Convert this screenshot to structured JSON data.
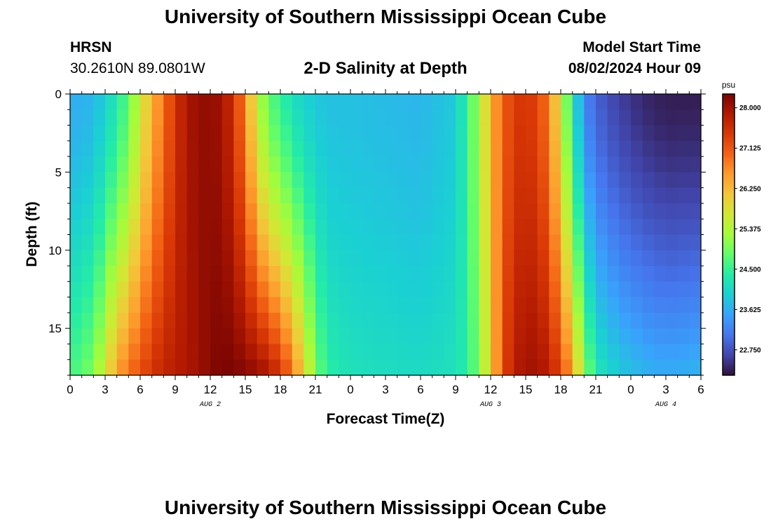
{
  "header": {
    "title": "University of Southern Mississippi Ocean Cube",
    "station": "HRSN",
    "coordinates": "30.2610N  89.0801W",
    "chart_title": "2-D Salinity at Depth",
    "start_label": "Model Start Time",
    "start_value": "08/02/2024 Hour 09"
  },
  "footer": {
    "title": "University of Southern Mississippi Ocean Cube"
  },
  "chart_data": {
    "type": "heatmap",
    "title": "2-D Salinity at Depth",
    "xlabel": "Forecast Time(Z)",
    "ylabel": "Depth (ft)",
    "x_range_hours": [
      0,
      54
    ],
    "y_range_ft": [
      0,
      18
    ],
    "y_inverted": true,
    "x_tick_labels": [
      "0",
      "3",
      "6",
      "9",
      "12",
      "15",
      "18",
      "21",
      "0",
      "3",
      "6",
      "9",
      "12",
      "15",
      "18",
      "21",
      "0",
      "3",
      "6"
    ],
    "y_ticks": [
      0,
      5,
      10,
      15
    ],
    "date_labels": [
      {
        "text": "AUG 2",
        "hour": 12
      },
      {
        "text": "AUG 3",
        "hour": 36
      },
      {
        "text": "AUG 4",
        "hour": 51
      }
    ],
    "colorbar": {
      "unit": "psu",
      "min": 22.2,
      "max": 28.3,
      "ticks": [
        "28.000",
        "27.125",
        "26.250",
        "25.375",
        "24.500",
        "23.625",
        "22.750"
      ]
    },
    "colorscale": [
      "#30123b",
      "#4145ab",
      "#4675ed",
      "#39a2fc",
      "#1bcfd4",
      "#24eca6",
      "#61fc6c",
      "#a4fc3b",
      "#d1e834",
      "#f3c63a",
      "#fe9b2d",
      "#f36315",
      "#d93806",
      "#b11901",
      "#7a0403"
    ],
    "grid_hours_step": 1,
    "grid_depth_rows": 18,
    "salinity_profiles": [
      {
        "hour": 0,
        "surface": 23.6,
        "bottom": 24.6
      },
      {
        "hour": 2,
        "surface": 23.7,
        "bottom": 25.0
      },
      {
        "hour": 4,
        "surface": 24.3,
        "bottom": 26.5
      },
      {
        "hour": 5,
        "surface": 24.8,
        "bottom": 26.9
      },
      {
        "hour": 6,
        "surface": 25.6,
        "bottom": 27.2
      },
      {
        "hour": 7,
        "surface": 26.3,
        "bottom": 27.5
      },
      {
        "hour": 8,
        "surface": 26.9,
        "bottom": 27.7
      },
      {
        "hour": 9,
        "surface": 27.5,
        "bottom": 27.8
      },
      {
        "hour": 10,
        "surface": 27.9,
        "bottom": 27.9
      },
      {
        "hour": 11,
        "surface": 28.1,
        "bottom": 28.0
      },
      {
        "hour": 12,
        "surface": 28.1,
        "bottom": 28.2
      },
      {
        "hour": 13,
        "surface": 28.0,
        "bottom": 28.3
      },
      {
        "hour": 14,
        "surface": 27.5,
        "bottom": 28.3
      },
      {
        "hour": 15,
        "surface": 26.7,
        "bottom": 28.2
      },
      {
        "hour": 16,
        "surface": 25.5,
        "bottom": 28.1
      },
      {
        "hour": 17,
        "surface": 24.8,
        "bottom": 27.9
      },
      {
        "hour": 18,
        "surface": 24.5,
        "bottom": 27.5
      },
      {
        "hour": 19,
        "surface": 24.2,
        "bottom": 26.9
      },
      {
        "hour": 20,
        "surface": 24.0,
        "bottom": 26.0
      },
      {
        "hour": 21,
        "surface": 23.9,
        "bottom": 25.0
      },
      {
        "hour": 22,
        "surface": 23.8,
        "bottom": 24.4
      },
      {
        "hour": 24,
        "surface": 23.8,
        "bottom": 24.2
      },
      {
        "hour": 30,
        "surface": 23.7,
        "bottom": 24.1
      },
      {
        "hour": 33,
        "surface": 23.9,
        "bottom": 24.2
      },
      {
        "hour": 34,
        "surface": 24.5,
        "bottom": 24.4
      },
      {
        "hour": 35,
        "surface": 25.3,
        "bottom": 25.0
      },
      {
        "hour": 36,
        "surface": 26.3,
        "bottom": 26.0
      },
      {
        "hour": 37,
        "surface": 27.0,
        "bottom": 27.2
      },
      {
        "hour": 38,
        "surface": 27.4,
        "bottom": 27.8
      },
      {
        "hour": 39,
        "surface": 27.5,
        "bottom": 28.0
      },
      {
        "hour": 40,
        "surface": 27.3,
        "bottom": 28.0
      },
      {
        "hour": 41,
        "surface": 26.8,
        "bottom": 27.8
      },
      {
        "hour": 42,
        "surface": 25.6,
        "bottom": 27.3
      },
      {
        "hour": 43,
        "surface": 24.3,
        "bottom": 26.5
      },
      {
        "hour": 44,
        "surface": 23.3,
        "bottom": 25.2
      },
      {
        "hour": 45,
        "surface": 22.9,
        "bottom": 24.3
      },
      {
        "hour": 47,
        "surface": 22.6,
        "bottom": 23.9
      },
      {
        "hour": 49,
        "surface": 22.4,
        "bottom": 23.7
      },
      {
        "hour": 51,
        "surface": 22.3,
        "bottom": 23.6
      },
      {
        "hour": 54,
        "surface": 22.3,
        "bottom": 23.7
      }
    ]
  }
}
